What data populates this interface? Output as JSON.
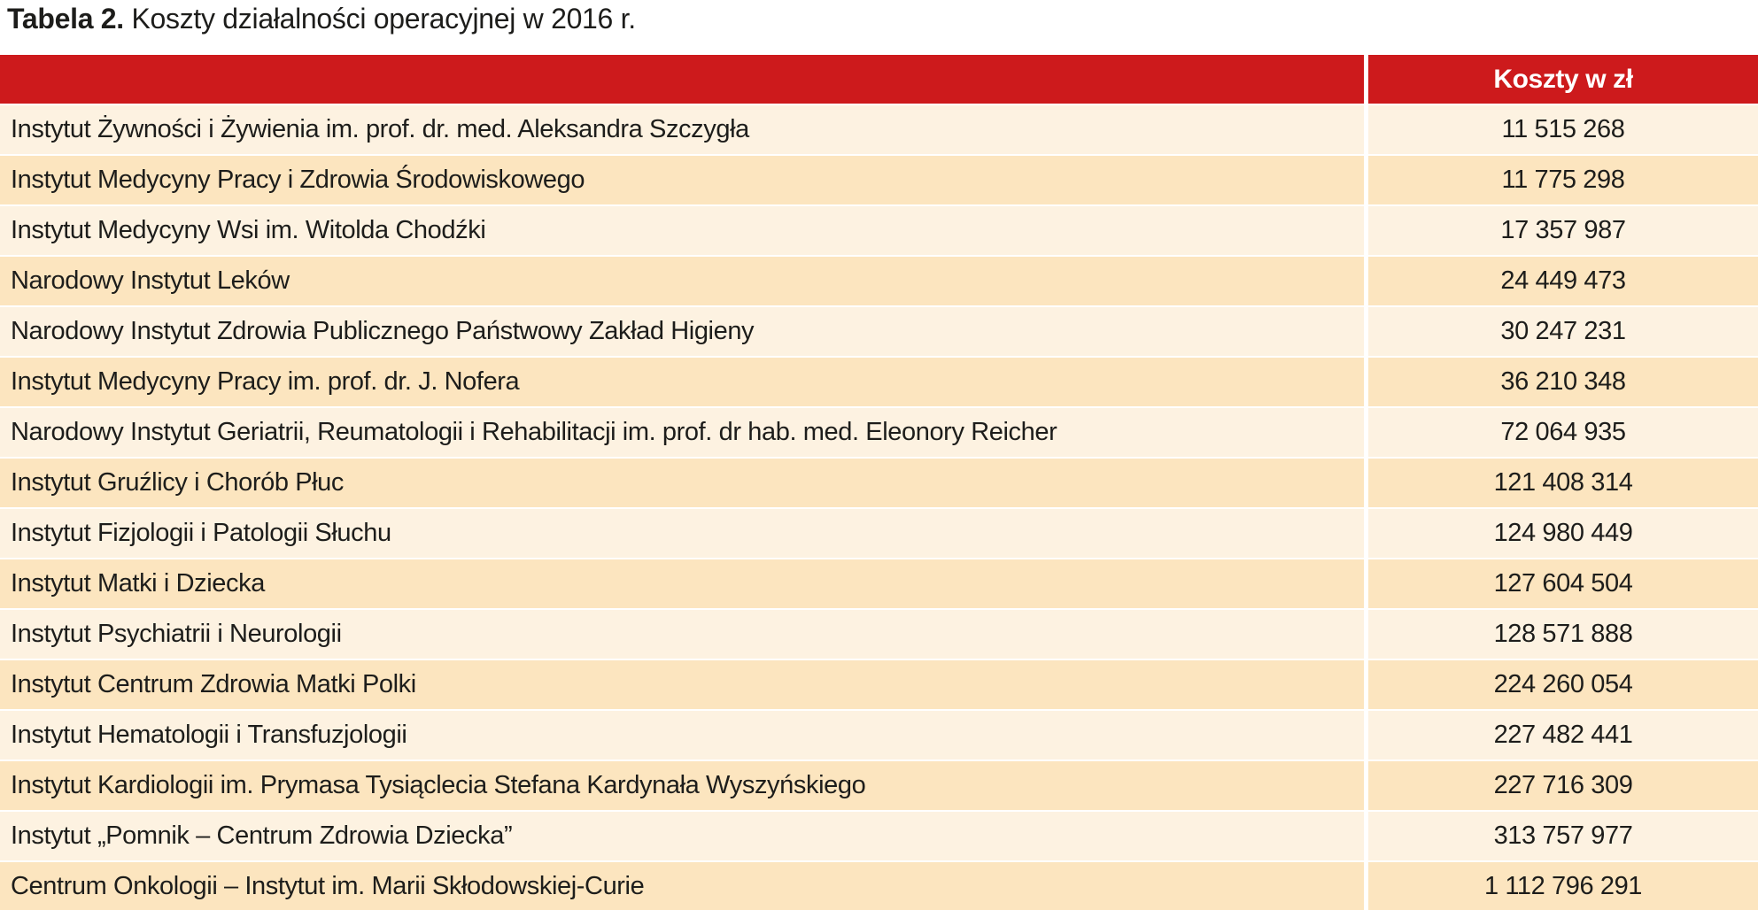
{
  "caption": {
    "prefix": "Tabela 2.",
    "text": "Koszty działalności operacyjnej w 2016 r."
  },
  "table": {
    "costs_header": "Koszty w zł",
    "rows": [
      {
        "institution": "Instytut Żywności i Żywienia im. prof. dr. med. Aleksandra Szczygła",
        "cost": "11 515 268"
      },
      {
        "institution": "Instytut Medycyny Pracy i Zdrowia Środowiskowego",
        "cost": "11 775 298"
      },
      {
        "institution": "Instytut Medycyny Wsi im. Witolda Chodźki",
        "cost": "17 357 987"
      },
      {
        "institution": "Narodowy Instytut Leków",
        "cost": "24 449 473"
      },
      {
        "institution": "Narodowy Instytut Zdrowia Publicznego Państwowy Zakład Higieny",
        "cost": "30 247 231"
      },
      {
        "institution": "Instytut Medycyny Pracy im. prof. dr. J. Nofera",
        "cost": "36 210 348"
      },
      {
        "institution": "Narodowy Instytut Geriatrii, Reumatologii i Rehabilitacji im. prof. dr hab. med. Eleonory Reicher",
        "cost": "72 064 935"
      },
      {
        "institution": "Instytut Gruźlicy i Chorób Płuc",
        "cost": "121 408 314"
      },
      {
        "institution": "Instytut Fizjologii i Patologii Słuchu",
        "cost": "124 980 449"
      },
      {
        "institution": "Instytut Matki i Dziecka",
        "cost": "127 604 504"
      },
      {
        "institution": "Instytut Psychiatrii i Neurologii",
        "cost": "128 571 888"
      },
      {
        "institution": "Instytut Centrum Zdrowia Matki Polki",
        "cost": "224 260 054"
      },
      {
        "institution": "Instytut Hematologii i Transfuzjologii",
        "cost": "227 482 441"
      },
      {
        "institution": "Instytut Kardiologii im. Prymasa Tysiąclecia Stefana Kardynała Wyszyńskiego",
        "cost": "227 716 309"
      },
      {
        "institution": "Instytut „Pomnik – Centrum Zdrowia Dziecka”",
        "cost": "313 757 977"
      },
      {
        "institution": "Centrum Onkologii – Instytut im. Marii Skłodowskiej-Curie",
        "cost": "1 112 796 291"
      }
    ]
  },
  "colors": {
    "header_bg": "#cd1a1c",
    "header_text": "#ffffff",
    "row_odd": "#fdf2e1",
    "row_even": "#fce5bf",
    "text": "#1d1d1b",
    "divider": "#ffffff"
  }
}
